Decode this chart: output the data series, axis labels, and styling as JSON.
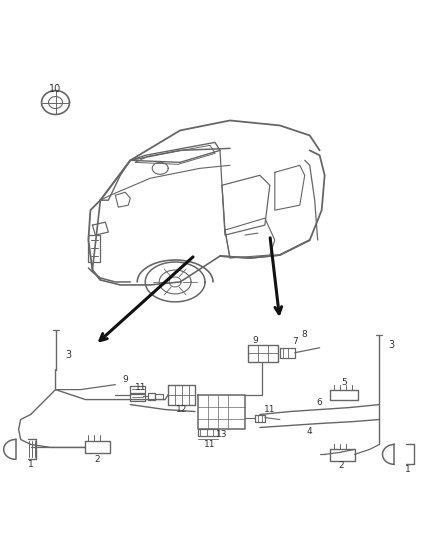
{
  "bg_color": "#ffffff",
  "line_color": "#666666",
  "dark_line_color": "#111111",
  "label_color": "#333333",
  "fig_width": 4.38,
  "fig_height": 5.33,
  "dpi": 100
}
